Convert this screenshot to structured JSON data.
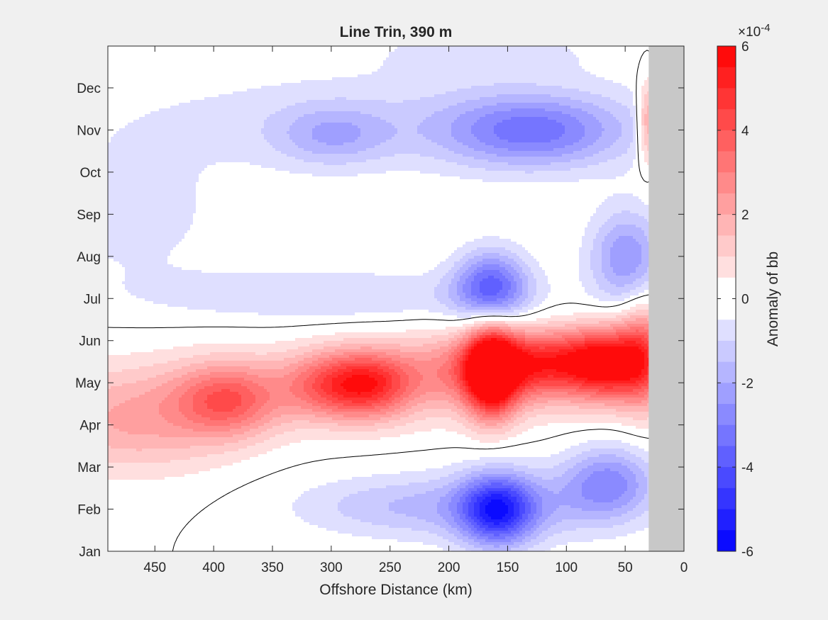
{
  "chart_data": {
    "type": "heatmap",
    "subtype": "filled-contour",
    "title": "Line Trin, 390 m",
    "xlabel": "Offshore Distance (km)",
    "ylabel": "",
    "x_direction": "reversed",
    "xlim": [
      490,
      0
    ],
    "x_ticks": [
      450,
      400,
      350,
      300,
      250,
      200,
      150,
      100,
      50,
      0
    ],
    "y_ticks": [
      "Jan",
      "Feb",
      "Mar",
      "Apr",
      "May",
      "Jun",
      "Jul",
      "Aug",
      "Sep",
      "Oct",
      "Nov",
      "Dec"
    ],
    "land_mask": {
      "x_from_km": 30,
      "x_to_km": 0,
      "color": "#c8c8c8"
    },
    "colorbar": {
      "label": "Anomaly of bb",
      "exponent_label": "×10",
      "exponent_power": "-4",
      "range": [
        -6,
        6
      ],
      "ticks": [
        "6",
        "4",
        "2",
        "0",
        "-2",
        "-4",
        "-6"
      ],
      "tick_values": [
        6,
        4,
        2,
        0,
        -2,
        -4,
        -6
      ],
      "levels": 24,
      "neg_color": "#0000ff",
      "pos_color": "#ff0000",
      "mid_color": "#ffffff"
    },
    "features": [
      {
        "kind": "positive",
        "km": 165,
        "month": 4.3,
        "peak": 6.0,
        "sx_km": 15,
        "sm": 0.75
      },
      {
        "kind": "positive",
        "km": 150,
        "month": 4.4,
        "peak": 3.0,
        "sx_km": 60,
        "sm": 0.6
      },
      {
        "kind": "positive",
        "km": 65,
        "month": 4.5,
        "peak": 4.0,
        "sx_km": 22,
        "sm": 0.6
      },
      {
        "kind": "positive",
        "km": 110,
        "month": 4.6,
        "peak": 2.5,
        "sx_km": 40,
        "sm": 0.5
      },
      {
        "kind": "positive",
        "km": 35,
        "month": 4.7,
        "peak": 3.0,
        "sx_km": 15,
        "sm": 0.9
      },
      {
        "kind": "positive",
        "km": 300,
        "month": 4.0,
        "peak": 2.8,
        "sx_km": 28,
        "sm": 0.55
      },
      {
        "kind": "positive",
        "km": 265,
        "month": 4.0,
        "peak": 2.8,
        "sx_km": 24,
        "sm": 0.55
      },
      {
        "kind": "positive",
        "km": 390,
        "month": 3.6,
        "peak": 2.8,
        "sx_km": 30,
        "sm": 0.6
      },
      {
        "kind": "positive",
        "km": 470,
        "month": 3.0,
        "peak": 1.8,
        "sx_km": 60,
        "sm": 0.8
      },
      {
        "kind": "positive",
        "km": 300,
        "month": 3.9,
        "peak": 1.2,
        "sx_km": 160,
        "sm": 0.7
      },
      {
        "kind": "positive",
        "km": 32,
        "month": 10.2,
        "peak": 2.6,
        "sx_km": 6,
        "sm": 0.7
      },
      {
        "kind": "negative",
        "km": 160,
        "month": 1.0,
        "peak": -4.2,
        "sx_km": 22,
        "sm": 0.6
      },
      {
        "kind": "negative",
        "km": 150,
        "month": 1.1,
        "peak": -1.5,
        "sx_km": 70,
        "sm": 0.6
      },
      {
        "kind": "negative",
        "km": 65,
        "month": 1.7,
        "peak": -2.5,
        "sx_km": 28,
        "sm": 0.6
      },
      {
        "kind": "negative",
        "km": 260,
        "month": 1.1,
        "peak": -1.0,
        "sx_km": 60,
        "sm": 0.5
      },
      {
        "kind": "negative",
        "km": 165,
        "month": 6.3,
        "peak": -3.6,
        "sx_km": 22,
        "sm": 0.6
      },
      {
        "kind": "negative",
        "km": 50,
        "month": 7.0,
        "peak": -2.5,
        "sx_km": 22,
        "sm": 0.8
      },
      {
        "kind": "negative",
        "km": 300,
        "month": 6.1,
        "peak": -1.0,
        "sx_km": 110,
        "sm": 0.45
      },
      {
        "kind": "negative",
        "km": 130,
        "month": 10.0,
        "peak": -2.8,
        "sx_km": 55,
        "sm": 0.6
      },
      {
        "kind": "negative",
        "km": 300,
        "month": 9.9,
        "peak": -1.5,
        "sx_km": 35,
        "sm": 0.5
      },
      {
        "kind": "negative",
        "km": 250,
        "month": 10.3,
        "peak": -0.8,
        "sx_km": 180,
        "sm": 0.9
      },
      {
        "kind": "negative",
        "km": 470,
        "month": 8.0,
        "peak": -0.7,
        "sx_km": 60,
        "sm": 1.2
      },
      {
        "kind": "negative",
        "km": 170,
        "month": 11.9,
        "peak": -0.8,
        "sx_km": 60,
        "sm": 0.4
      }
    ]
  }
}
